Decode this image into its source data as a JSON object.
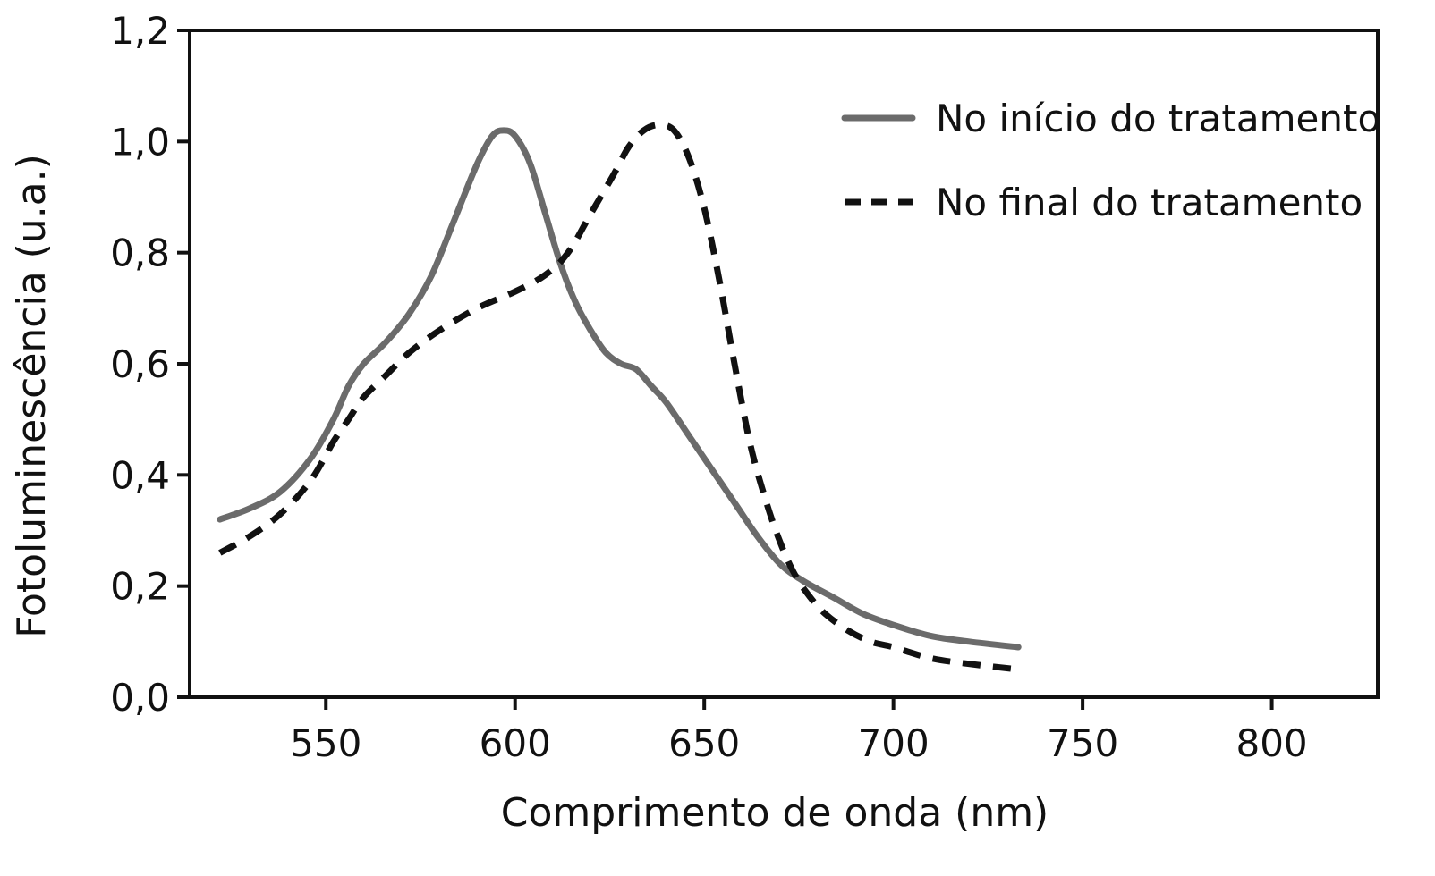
{
  "chart_data": {
    "type": "line",
    "title": "",
    "xlabel": "Comprimento de onda (nm)",
    "ylabel": "Fotoluminescência (u.a.)",
    "xlim": [
      514,
      828
    ],
    "ylim": [
      0.0,
      1.2
    ],
    "x_ticks": [
      550,
      600,
      650,
      700,
      750,
      800
    ],
    "x_tick_labels": [
      "550",
      "600",
      "650",
      "700",
      "750",
      "800"
    ],
    "y_ticks": [
      0.0,
      0.2,
      0.4,
      0.6,
      0.8,
      1.0,
      1.2
    ],
    "y_tick_labels": [
      "0,0",
      "0,2",
      "0,4",
      "0,6",
      "0,8",
      "1,0",
      "1,2"
    ],
    "grid": false,
    "legend_position": "top-right",
    "series": [
      {
        "name": "No início do tratamento",
        "style": "solid",
        "color": "#6b6b6b",
        "x": [
          522,
          530,
          538,
          546,
          552,
          556,
          560,
          566,
          572,
          578,
          584,
          590,
          594,
          597,
          600,
          604,
          608,
          612,
          616,
          620,
          624,
          628,
          632,
          636,
          640,
          646,
          652,
          658,
          664,
          670,
          676,
          684,
          692,
          700,
          710,
          720,
          733
        ],
        "values": [
          0.32,
          0.34,
          0.37,
          0.43,
          0.5,
          0.56,
          0.6,
          0.64,
          0.69,
          0.76,
          0.86,
          0.96,
          1.01,
          1.02,
          1.01,
          0.96,
          0.87,
          0.78,
          0.71,
          0.66,
          0.62,
          0.6,
          0.59,
          0.56,
          0.53,
          0.47,
          0.41,
          0.35,
          0.29,
          0.24,
          0.21,
          0.18,
          0.15,
          0.13,
          0.11,
          0.1,
          0.09
        ]
      },
      {
        "name": "No final do tratamento",
        "style": "dashed",
        "color": "#111111",
        "x": [
          522,
          530,
          538,
          546,
          552,
          556,
          560,
          566,
          572,
          580,
          590,
          600,
          608,
          614,
          620,
          626,
          630,
          634,
          638,
          642,
          646,
          650,
          654,
          658,
          662,
          666,
          670,
          674,
          678,
          682,
          688,
          694,
          700,
          710,
          720,
          733
        ],
        "values": [
          0.26,
          0.29,
          0.33,
          0.39,
          0.46,
          0.5,
          0.54,
          0.58,
          0.62,
          0.66,
          0.7,
          0.73,
          0.76,
          0.8,
          0.87,
          0.94,
          0.99,
          1.02,
          1.03,
          1.02,
          0.97,
          0.88,
          0.75,
          0.6,
          0.46,
          0.36,
          0.28,
          0.22,
          0.18,
          0.15,
          0.12,
          0.1,
          0.09,
          0.07,
          0.06,
          0.05
        ]
      }
    ]
  }
}
